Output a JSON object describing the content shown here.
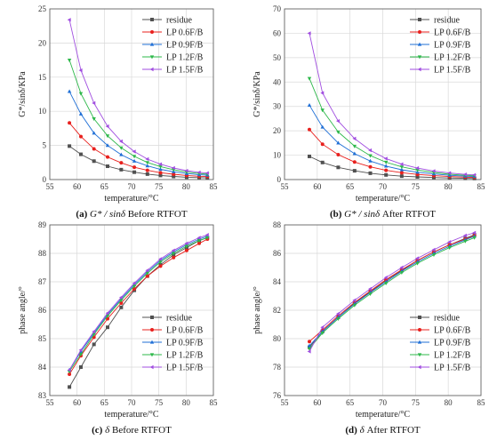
{
  "chart_data": [
    {
      "type": "line",
      "caption": {
        "letter": "(a)",
        "symbol": "G* / sinδ",
        "text": "Before RTFOT"
      },
      "xlabel": "temperature/°C",
      "ylabel": "G*/sinδ/KPa",
      "xlim": [
        55,
        85
      ],
      "ylim": [
        0,
        25
      ],
      "xticks": [
        55,
        60,
        65,
        70,
        75,
        80,
        85
      ],
      "yticks": [
        0,
        5,
        10,
        15,
        20,
        25
      ],
      "x": [
        58.6,
        60.7,
        63.1,
        65.6,
        68.1,
        70.5,
        72.9,
        75.3,
        77.7,
        80.1,
        82.4,
        83.9
      ],
      "series": [
        {
          "name": "residue",
          "color": "#505050",
          "marker": "square",
          "values": [
            4.9,
            3.7,
            2.7,
            1.95,
            1.45,
            1.08,
            0.8,
            0.6,
            0.45,
            0.34,
            0.28,
            0.25
          ]
        },
        {
          "name": "LP 0.6F/B",
          "color": "#e8201d",
          "marker": "circle",
          "values": [
            8.3,
            6.3,
            4.5,
            3.3,
            2.45,
            1.8,
            1.35,
            1.0,
            0.78,
            0.6,
            0.48,
            0.44
          ]
        },
        {
          "name": "LP 0.9F/B",
          "color": "#1f6fd6",
          "marker": "triangle-up",
          "values": [
            12.9,
            9.6,
            6.8,
            5.0,
            3.65,
            2.7,
            2.0,
            1.5,
            1.15,
            0.88,
            0.7,
            0.65
          ]
        },
        {
          "name": "LP 1.2F/B",
          "color": "#2db84a",
          "marker": "triangle-down",
          "values": [
            17.5,
            12.6,
            8.9,
            6.4,
            4.65,
            3.4,
            2.5,
            1.9,
            1.45,
            1.1,
            0.88,
            0.8
          ]
        },
        {
          "name": "LP 1.5F/B",
          "color": "#a14ee0",
          "marker": "triangle-left",
          "values": [
            23.4,
            16.0,
            11.2,
            7.8,
            5.6,
            4.1,
            3.0,
            2.25,
            1.7,
            1.3,
            1.05,
            0.95
          ]
        }
      ]
    },
    {
      "type": "line",
      "caption": {
        "letter": "(b)",
        "symbol": "G* / sinδ",
        "text": "After RTFOT"
      },
      "xlabel": "temperature/°C",
      "ylabel": "G*/sinδ/KPa",
      "xlim": [
        55,
        85
      ],
      "ylim": [
        0,
        70
      ],
      "xticks": [
        55,
        60,
        65,
        70,
        75,
        80,
        85
      ],
      "yticks": [
        0,
        10,
        20,
        30,
        40,
        50,
        60,
        70
      ],
      "x": [
        58.8,
        60.8,
        63.2,
        65.7,
        68.1,
        70.5,
        72.9,
        75.3,
        77.8,
        80.2,
        82.6,
        84.0
      ],
      "series": [
        {
          "name": "residue",
          "color": "#505050",
          "marker": "square",
          "values": [
            9.5,
            7.0,
            5.0,
            3.6,
            2.6,
            1.9,
            1.4,
            1.1,
            0.85,
            0.65,
            0.5,
            0.45
          ]
        },
        {
          "name": "LP 0.6F/B",
          "color": "#e8201d",
          "marker": "circle",
          "values": [
            20.5,
            14.5,
            10.2,
            7.2,
            5.2,
            3.8,
            2.8,
            2.1,
            1.6,
            1.25,
            1.0,
            0.9
          ]
        },
        {
          "name": "LP 0.9F/B",
          "color": "#1f6fd6",
          "marker": "triangle-up",
          "values": [
            30.5,
            21.5,
            15.0,
            10.6,
            7.6,
            5.5,
            4.0,
            3.0,
            2.3,
            1.75,
            1.4,
            1.25
          ]
        },
        {
          "name": "LP 1.2F/B",
          "color": "#2db84a",
          "marker": "triangle-down",
          "values": [
            41.5,
            28.5,
            19.5,
            13.7,
            9.8,
            7.1,
            5.2,
            3.9,
            2.9,
            2.2,
            1.75,
            1.55
          ]
        },
        {
          "name": "LP 1.5F/B",
          "color": "#a14ee0",
          "marker": "triangle-left",
          "values": [
            60.0,
            35.5,
            24.0,
            16.8,
            12.0,
            8.6,
            6.3,
            4.7,
            3.5,
            2.7,
            2.1,
            1.9
          ]
        }
      ]
    },
    {
      "type": "line",
      "caption": {
        "letter": "(c)",
        "symbol": "δ",
        "text": "Before RTFOT"
      },
      "xlabel": "temperature/°C",
      "ylabel": "phase angle/°",
      "xlim": [
        55,
        85
      ],
      "ylim": [
        83,
        89
      ],
      "xticks": [
        55,
        60,
        65,
        70,
        75,
        80,
        85
      ],
      "yticks": [
        83,
        84,
        85,
        86,
        87,
        88,
        89
      ],
      "x": [
        58.6,
        60.7,
        63.1,
        65.6,
        68.1,
        70.5,
        72.9,
        75.3,
        77.7,
        80.1,
        82.4,
        83.9
      ],
      "series": [
        {
          "name": "residue",
          "color": "#505050",
          "marker": "square",
          "values": [
            83.3,
            84.0,
            84.8,
            85.4,
            86.1,
            86.7,
            87.2,
            87.6,
            87.95,
            88.2,
            88.45,
            88.55
          ]
        },
        {
          "name": "LP 0.6F/B",
          "color": "#e8201d",
          "marker": "circle",
          "values": [
            83.75,
            84.4,
            85.05,
            85.7,
            86.25,
            86.75,
            87.2,
            87.55,
            87.85,
            88.1,
            88.35,
            88.5
          ]
        },
        {
          "name": "LP 0.9F/B",
          "color": "#1f6fd6",
          "marker": "triangle-up",
          "values": [
            83.9,
            84.55,
            85.2,
            85.85,
            86.4,
            86.9,
            87.35,
            87.75,
            88.05,
            88.3,
            88.5,
            88.6
          ]
        },
        {
          "name": "LP 1.2F/B",
          "color": "#2db84a",
          "marker": "triangle-down",
          "values": [
            83.85,
            84.45,
            85.15,
            85.8,
            86.35,
            86.85,
            87.3,
            87.7,
            88.0,
            88.25,
            88.45,
            88.55
          ]
        },
        {
          "name": "LP 1.5F/B",
          "color": "#a14ee0",
          "marker": "triangle-left",
          "values": [
            83.9,
            84.6,
            85.25,
            85.9,
            86.45,
            86.95,
            87.4,
            87.8,
            88.1,
            88.35,
            88.55,
            88.65
          ]
        }
      ]
    },
    {
      "type": "line",
      "caption": {
        "letter": "(d)",
        "symbol": "δ",
        "text": "After RTFOT"
      },
      "xlabel": "temperature/°C",
      "ylabel": "phase angle/°",
      "xlim": [
        55,
        85
      ],
      "ylim": [
        76,
        88
      ],
      "xticks": [
        55,
        60,
        65,
        70,
        75,
        80,
        85
      ],
      "yticks": [
        76,
        78,
        80,
        82,
        84,
        86,
        88
      ],
      "x": [
        58.8,
        60.8,
        63.2,
        65.7,
        68.1,
        70.5,
        72.9,
        75.3,
        77.8,
        80.2,
        82.6,
        84.0
      ],
      "series": [
        {
          "name": "residue",
          "color": "#505050",
          "marker": "square",
          "values": [
            79.4,
            80.5,
            81.5,
            82.5,
            83.3,
            84.1,
            84.8,
            85.5,
            86.1,
            86.6,
            87.05,
            87.3
          ]
        },
        {
          "name": "LP 0.6F/B",
          "color": "#e8201d",
          "marker": "circle",
          "values": [
            79.8,
            80.6,
            81.6,
            82.55,
            83.35,
            84.15,
            84.85,
            85.5,
            86.1,
            86.6,
            87.0,
            87.25
          ]
        },
        {
          "name": "LP 0.9F/B",
          "color": "#1f6fd6",
          "marker": "triangle-up",
          "values": [
            79.5,
            80.5,
            81.5,
            82.45,
            83.25,
            84.0,
            84.75,
            85.4,
            86.0,
            86.5,
            86.95,
            87.2
          ]
        },
        {
          "name": "LP 1.2F/B",
          "color": "#2db84a",
          "marker": "triangle-down",
          "values": [
            79.3,
            80.4,
            81.4,
            82.35,
            83.15,
            83.9,
            84.65,
            85.3,
            85.9,
            86.4,
            86.85,
            87.1
          ]
        },
        {
          "name": "LP 1.5F/B",
          "color": "#a14ee0",
          "marker": "triangle-left",
          "values": [
            79.1,
            80.8,
            81.75,
            82.7,
            83.5,
            84.3,
            85.0,
            85.65,
            86.25,
            86.8,
            87.25,
            87.45
          ]
        }
      ]
    }
  ]
}
